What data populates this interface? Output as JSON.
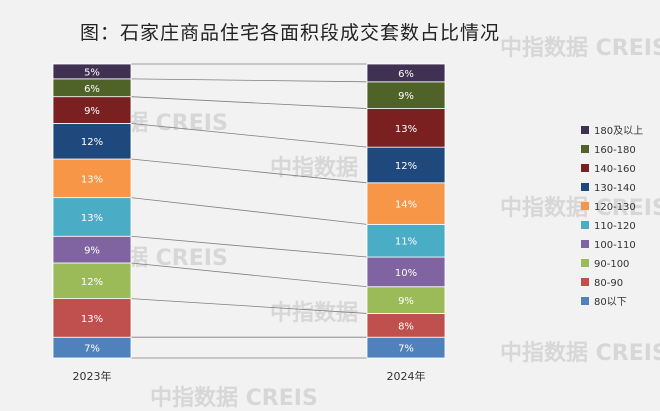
{
  "chart_data": {
    "type": "bar",
    "stacked": true,
    "percent": true,
    "title": "图：石家庄商品住宅各面积段成交套数占比情况",
    "categories": [
      "2023年",
      "2024年"
    ],
    "series": [
      {
        "name": "80以下",
        "color": "#4f81bd",
        "values": [
          7,
          7
        ]
      },
      {
        "name": "80-90",
        "color": "#c0504d",
        "values": [
          13,
          8
        ]
      },
      {
        "name": "90-100",
        "color": "#9bbb59",
        "values": [
          12,
          9
        ]
      },
      {
        "name": "100-110",
        "color": "#8064a2",
        "values": [
          9,
          10
        ]
      },
      {
        "name": "110-120",
        "color": "#4bacc6",
        "values": [
          13,
          11
        ]
      },
      {
        "name": "120-130",
        "color": "#f79646",
        "values": [
          13,
          14
        ]
      },
      {
        "name": "130-140",
        "color": "#1f497d",
        "values": [
          12,
          12
        ]
      },
      {
        "name": "140-160",
        "color": "#7b2020",
        "values": [
          9,
          13
        ]
      },
      {
        "name": "160-180",
        "color": "#4f6228",
        "values": [
          6,
          9
        ]
      },
      {
        "name": "180及以上",
        "color": "#403152",
        "values": [
          5,
          6
        ]
      }
    ],
    "legend_position": "right",
    "grid": false
  },
  "watermark": {
    "brand_cn": "中指数据",
    "brand_en": "CREIS"
  }
}
